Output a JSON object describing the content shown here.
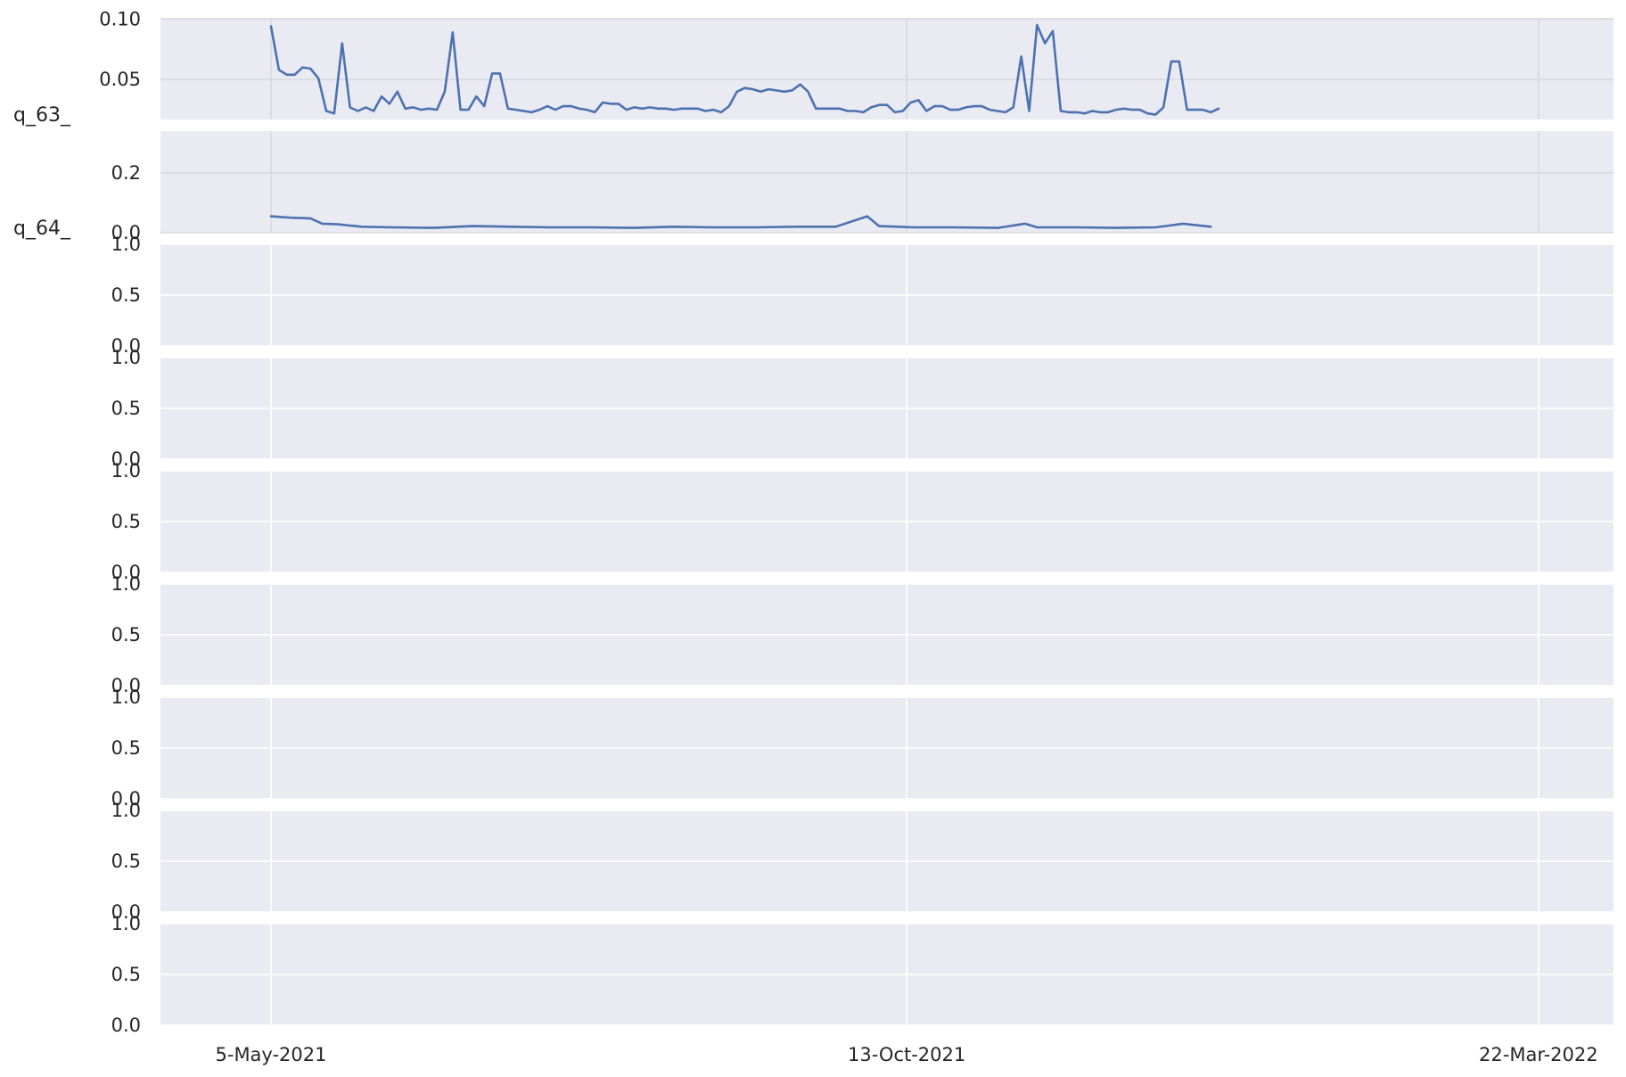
{
  "chart_data": {
    "type": "line",
    "x_axis": {
      "type": "date",
      "range": [
        "2021-04-07",
        "2022-04-10"
      ],
      "ticks": [
        {
          "date": "2021-05-05",
          "label": "5-May-2021"
        },
        {
          "date": "2021-10-13",
          "label": "13-Oct-2021"
        },
        {
          "date": "2022-03-22",
          "label": "22-Mar-2022"
        }
      ]
    },
    "grid": true,
    "panels": [
      {
        "row_label": "q_63_",
        "ylim": [
          0.017,
          0.101
        ],
        "yticks": [
          {
            "value": 0.05,
            "label": "0.05"
          },
          {
            "value": 0.1,
            "label": "0.10"
          }
        ],
        "series": [
          {
            "color": "#4c72b0",
            "points": [
              [
                "2021-05-05",
                0.094
              ],
              [
                "2021-05-07",
                0.058
              ],
              [
                "2021-05-09",
                0.054
              ],
              [
                "2021-05-11",
                0.054
              ],
              [
                "2021-05-13",
                0.06
              ],
              [
                "2021-05-15",
                0.059
              ],
              [
                "2021-05-17",
                0.051
              ],
              [
                "2021-05-19",
                0.024
              ],
              [
                "2021-05-21",
                0.022
              ],
              [
                "2021-05-23",
                0.08
              ],
              [
                "2021-05-25",
                0.027
              ],
              [
                "2021-05-27",
                0.024
              ],
              [
                "2021-05-29",
                0.027
              ],
              [
                "2021-05-31",
                0.024
              ],
              [
                "2021-06-02",
                0.036
              ],
              [
                "2021-06-04",
                0.03
              ],
              [
                "2021-06-06",
                0.04
              ],
              [
                "2021-06-08",
                0.026
              ],
              [
                "2021-06-10",
                0.027
              ],
              [
                "2021-06-12",
                0.025
              ],
              [
                "2021-06-14",
                0.026
              ],
              [
                "2021-06-16",
                0.025
              ],
              [
                "2021-06-18",
                0.04
              ],
              [
                "2021-06-20",
                0.089
              ],
              [
                "2021-06-22",
                0.025
              ],
              [
                "2021-06-24",
                0.025
              ],
              [
                "2021-06-26",
                0.036
              ],
              [
                "2021-06-28",
                0.028
              ],
              [
                "2021-06-30",
                0.055
              ],
              [
                "2021-07-02",
                0.055
              ],
              [
                "2021-07-04",
                0.026
              ],
              [
                "2021-07-06",
                0.025
              ],
              [
                "2021-07-08",
                0.024
              ],
              [
                "2021-07-10",
                0.023
              ],
              [
                "2021-07-12",
                0.025
              ],
              [
                "2021-07-14",
                0.028
              ],
              [
                "2021-07-16",
                0.025
              ],
              [
                "2021-07-18",
                0.028
              ],
              [
                "2021-07-20",
                0.028
              ],
              [
                "2021-07-22",
                0.026
              ],
              [
                "2021-07-24",
                0.025
              ],
              [
                "2021-07-26",
                0.023
              ],
              [
                "2021-07-28",
                0.031
              ],
              [
                "2021-07-30",
                0.03
              ],
              [
                "2021-08-01",
                0.03
              ],
              [
                "2021-08-03",
                0.025
              ],
              [
                "2021-08-05",
                0.027
              ],
              [
                "2021-08-07",
                0.026
              ],
              [
                "2021-08-09",
                0.027
              ],
              [
                "2021-08-11",
                0.026
              ],
              [
                "2021-08-13",
                0.026
              ],
              [
                "2021-08-15",
                0.025
              ],
              [
                "2021-08-17",
                0.026
              ],
              [
                "2021-08-19",
                0.026
              ],
              [
                "2021-08-21",
                0.026
              ],
              [
                "2021-08-23",
                0.024
              ],
              [
                "2021-08-25",
                0.025
              ],
              [
                "2021-08-27",
                0.023
              ],
              [
                "2021-08-29",
                0.028
              ],
              [
                "2021-08-31",
                0.04
              ],
              [
                "2021-09-02",
                0.043
              ],
              [
                "2021-09-04",
                0.042
              ],
              [
                "2021-09-06",
                0.04
              ],
              [
                "2021-09-08",
                0.042
              ],
              [
                "2021-09-10",
                0.041
              ],
              [
                "2021-09-12",
                0.04
              ],
              [
                "2021-09-14",
                0.041
              ],
              [
                "2021-09-16",
                0.046
              ],
              [
                "2021-09-18",
                0.04
              ],
              [
                "2021-09-20",
                0.026
              ],
              [
                "2021-09-22",
                0.026
              ],
              [
                "2021-09-24",
                0.026
              ],
              [
                "2021-09-26",
                0.026
              ],
              [
                "2021-09-28",
                0.024
              ],
              [
                "2021-09-30",
                0.024
              ],
              [
                "2021-10-02",
                0.023
              ],
              [
                "2021-10-04",
                0.027
              ],
              [
                "2021-10-06",
                0.029
              ],
              [
                "2021-10-08",
                0.029
              ],
              [
                "2021-10-10",
                0.023
              ],
              [
                "2021-10-12",
                0.024
              ],
              [
                "2021-10-14",
                0.031
              ],
              [
                "2021-10-16",
                0.033
              ],
              [
                "2021-10-18",
                0.024
              ],
              [
                "2021-10-20",
                0.028
              ],
              [
                "2021-10-22",
                0.028
              ],
              [
                "2021-10-24",
                0.025
              ],
              [
                "2021-10-26",
                0.025
              ],
              [
                "2021-10-28",
                0.027
              ],
              [
                "2021-10-30",
                0.028
              ],
              [
                "2021-11-01",
                0.028
              ],
              [
                "2021-11-03",
                0.025
              ],
              [
                "2021-11-05",
                0.024
              ],
              [
                "2021-11-07",
                0.023
              ],
              [
                "2021-11-09",
                0.027
              ],
              [
                "2021-11-11",
                0.069
              ],
              [
                "2021-11-13",
                0.024
              ],
              [
                "2021-11-15",
                0.095
              ],
              [
                "2021-11-17",
                0.08
              ],
              [
                "2021-11-19",
                0.09
              ],
              [
                "2021-11-21",
                0.024
              ],
              [
                "2021-11-23",
                0.023
              ],
              [
                "2021-11-25",
                0.023
              ],
              [
                "2021-11-27",
                0.022
              ],
              [
                "2021-11-29",
                0.024
              ],
              [
                "2021-12-01",
                0.023
              ],
              [
                "2021-12-03",
                0.023
              ],
              [
                "2021-12-05",
                0.025
              ],
              [
                "2021-12-07",
                0.026
              ],
              [
                "2021-12-09",
                0.025
              ],
              [
                "2021-12-11",
                0.025
              ],
              [
                "2021-12-13",
                0.022
              ],
              [
                "2021-12-15",
                0.021
              ],
              [
                "2021-12-17",
                0.027
              ],
              [
                "2021-12-19",
                0.065
              ],
              [
                "2021-12-21",
                0.065
              ],
              [
                "2021-12-23",
                0.025
              ],
              [
                "2021-12-25",
                0.025
              ],
              [
                "2021-12-27",
                0.025
              ],
              [
                "2021-12-29",
                0.023
              ],
              [
                "2021-12-31",
                0.026
              ]
            ]
          }
        ]
      },
      {
        "row_label": "q_64_",
        "ylim": [
          0.0,
          0.34
        ],
        "yticks": [
          {
            "value": 0.0,
            "label": "0.0"
          },
          {
            "value": 0.2,
            "label": "0.2"
          }
        ],
        "series": [
          {
            "color": "#4c72b0",
            "points": [
              [
                "2021-05-05",
                0.055
              ],
              [
                "2021-05-10",
                0.05
              ],
              [
                "2021-05-15",
                0.048
              ],
              [
                "2021-05-18",
                0.03
              ],
              [
                "2021-05-22",
                0.028
              ],
              [
                "2021-05-28",
                0.02
              ],
              [
                "2021-06-05",
                0.018
              ],
              [
                "2021-06-15",
                0.016
              ],
              [
                "2021-06-25",
                0.022
              ],
              [
                "2021-07-05",
                0.02
              ],
              [
                "2021-07-15",
                0.018
              ],
              [
                "2021-07-25",
                0.018
              ],
              [
                "2021-08-05",
                0.016
              ],
              [
                "2021-08-15",
                0.02
              ],
              [
                "2021-08-25",
                0.018
              ],
              [
                "2021-09-05",
                0.018
              ],
              [
                "2021-09-15",
                0.02
              ],
              [
                "2021-09-25",
                0.02
              ],
              [
                "2021-10-03",
                0.055
              ],
              [
                "2021-10-06",
                0.022
              ],
              [
                "2021-10-15",
                0.018
              ],
              [
                "2021-10-25",
                0.018
              ],
              [
                "2021-11-05",
                0.016
              ],
              [
                "2021-11-12",
                0.03
              ],
              [
                "2021-11-15",
                0.018
              ],
              [
                "2021-11-25",
                0.018
              ],
              [
                "2021-12-05",
                0.016
              ],
              [
                "2021-12-15",
                0.018
              ],
              [
                "2021-12-22",
                0.03
              ],
              [
                "2021-12-29",
                0.02
              ]
            ]
          }
        ]
      },
      {
        "row_label": "",
        "ylim": [
          0.0,
          1.0
        ],
        "yticks": [
          {
            "value": 0.0,
            "label": "0.0"
          },
          {
            "value": 0.5,
            "label": "0.5"
          },
          {
            "value": 1.0,
            "label": "1.0"
          }
        ],
        "series": []
      },
      {
        "row_label": "",
        "ylim": [
          0.0,
          1.0
        ],
        "yticks": [
          {
            "value": 0.0,
            "label": "0.0"
          },
          {
            "value": 0.5,
            "label": "0.5"
          },
          {
            "value": 1.0,
            "label": "1.0"
          }
        ],
        "series": []
      },
      {
        "row_label": "",
        "ylim": [
          0.0,
          1.0
        ],
        "yticks": [
          {
            "value": 0.0,
            "label": "0.0"
          },
          {
            "value": 0.5,
            "label": "0.5"
          },
          {
            "value": 1.0,
            "label": "1.0"
          }
        ],
        "series": []
      },
      {
        "row_label": "",
        "ylim": [
          0.0,
          1.0
        ],
        "yticks": [
          {
            "value": 0.0,
            "label": "0.0"
          },
          {
            "value": 0.5,
            "label": "0.5"
          },
          {
            "value": 1.0,
            "label": "1.0"
          }
        ],
        "series": []
      },
      {
        "row_label": "",
        "ylim": [
          0.0,
          1.0
        ],
        "yticks": [
          {
            "value": 0.0,
            "label": "0.0"
          },
          {
            "value": 0.5,
            "label": "0.5"
          },
          {
            "value": 1.0,
            "label": "1.0"
          }
        ],
        "series": []
      },
      {
        "row_label": "",
        "ylim": [
          0.0,
          1.0
        ],
        "yticks": [
          {
            "value": 0.0,
            "label": "0.0"
          },
          {
            "value": 0.5,
            "label": "0.5"
          },
          {
            "value": 1.0,
            "label": "1.0"
          }
        ],
        "series": []
      },
      {
        "row_label": "",
        "ylim": [
          0.0,
          1.0
        ],
        "yticks": [
          {
            "value": 0.0,
            "label": "0.0"
          },
          {
            "value": 0.5,
            "label": "0.5"
          },
          {
            "value": 1.0,
            "label": "1.0"
          }
        ],
        "series": []
      }
    ]
  }
}
